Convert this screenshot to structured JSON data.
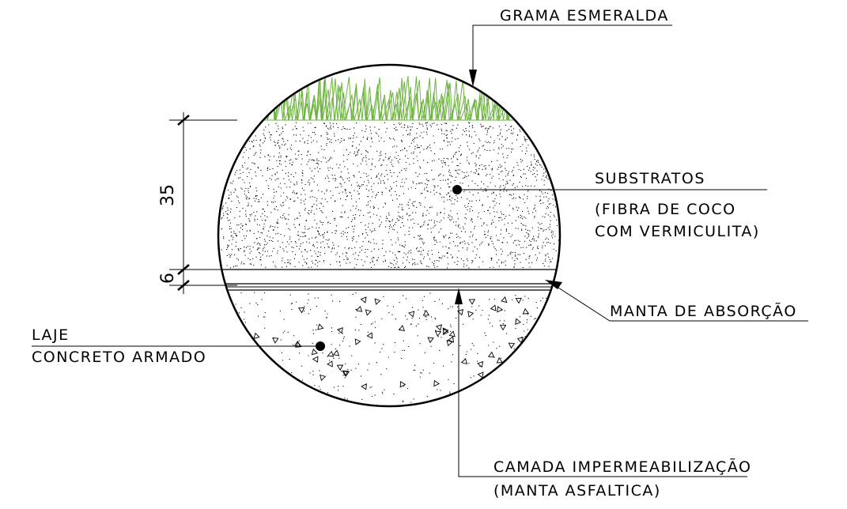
{
  "labels": {
    "grass": "GRAMA ESMERALDA",
    "substrate_line1": "SUBSTRATOS",
    "substrate_line2": "(FIBRA DE COCO",
    "substrate_line3": "COM VERMICULITA)",
    "absorption": "MANTA DE ABSORÇÃO",
    "slab_line1": "LAJE",
    "slab_line2": "CONCRETO ARMADO",
    "waterproof_line1": "CAMADA IMPERMEABILIZAÇÃO",
    "waterproof_line2": "(MANTA ASFALTICA)"
  },
  "dimensions": {
    "substrate_thickness": "35",
    "absorption_thickness": "6"
  },
  "colors": {
    "grass": "#6db33f",
    "line": "#000000"
  }
}
